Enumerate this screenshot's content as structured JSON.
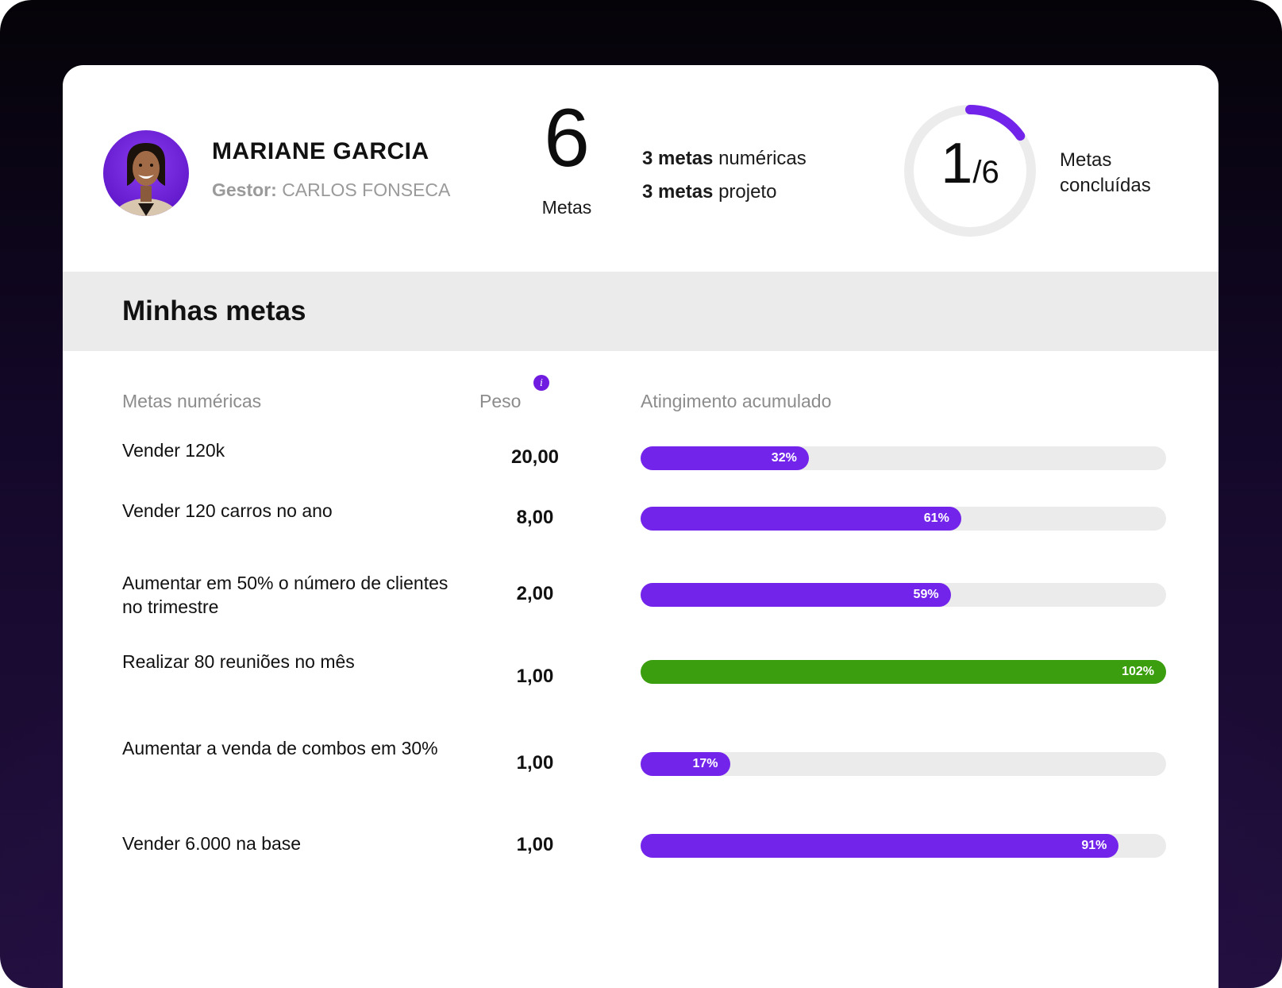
{
  "profile": {
    "name": "MARIANE GARCIA",
    "manager_label": "Gestor:",
    "manager_name": "CARLOS FONSECA"
  },
  "summary": {
    "total": "6",
    "total_label": "Metas",
    "numeric_count": "3 metas",
    "numeric_suffix": "numéricas",
    "project_count": "3 metas",
    "project_suffix": "projeto",
    "completed": "1",
    "completed_total": "/6",
    "completed_fraction": 0.1667,
    "completed_line1": "Metas",
    "completed_line2": "concluídas"
  },
  "section": {
    "title": "Minhas metas"
  },
  "table": {
    "headers": {
      "goal": "Metas numéricas",
      "weight": "Peso",
      "progress": "Atingimento acumulado",
      "info_icon": "i"
    },
    "rows": [
      {
        "goal": "Vender 120k",
        "weight": "20,00",
        "percent_label": "32%",
        "percent": 32
      },
      {
        "goal": "Vender 120 carros no ano",
        "weight": "8,00",
        "percent_label": "61%",
        "percent": 61
      },
      {
        "goal": "Aumentar em 50% o número de clientes no trimestre",
        "weight": "2,00",
        "percent_label": "59%",
        "percent": 59
      },
      {
        "goal": "Realizar 80 reuniões no mês",
        "weight": "1,00",
        "percent_label": "102%",
        "percent": 102
      },
      {
        "goal": "Aumentar a venda de combos em 30%",
        "weight": "1,00",
        "percent_label": "17%",
        "percent": 17
      },
      {
        "goal": "Vender 6.000 na base",
        "weight": "1,00",
        "percent_label": "91%",
        "percent": 91
      }
    ]
  },
  "colors": {
    "accent": "#7324ea",
    "complete": "#3a9e0e",
    "track": "#ebebeb"
  }
}
